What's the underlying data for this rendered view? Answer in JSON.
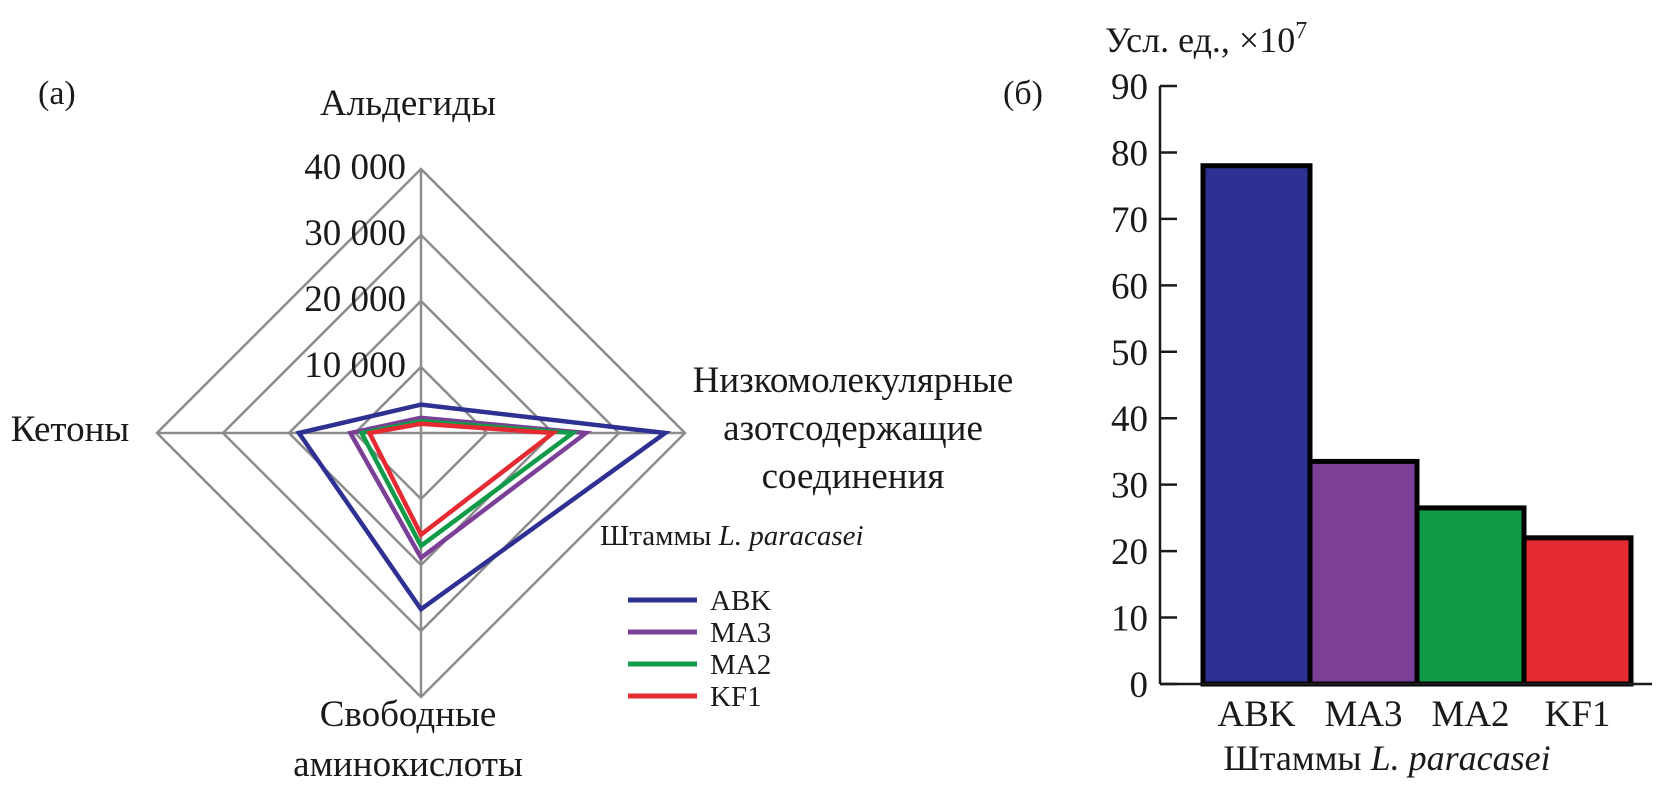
{
  "chart_data": [
    {
      "type": "radar",
      "panel_label": "(а)",
      "axes": [
        "Альдегиды",
        "Низкомолекулярные азотсодержащие соединения",
        "Свободные аминокислоты",
        "Кетоны"
      ],
      "axis_label_lines": [
        [
          "Альдегиды"
        ],
        [
          "Низкомолекулярные",
          "азотсодержащие",
          "соединения"
        ],
        [
          "Свободные",
          "аминокислоты"
        ],
        [
          "Кетоны"
        ]
      ],
      "scale_ticks": [
        10000,
        20000,
        30000,
        40000
      ],
      "scale_tick_labels": [
        "10 000",
        "20 000",
        "30 000",
        "40 000"
      ],
      "rlim": [
        0,
        40000
      ],
      "legend_title_prefix": "Штаммы ",
      "legend_title_italic": "L. paracasei",
      "series": [
        {
          "name": "ABK",
          "color": "#2e3192",
          "values": [
            4300,
            37000,
            26700,
            18500
          ]
        },
        {
          "name": "MA3",
          "color": "#7b3f98",
          "values": [
            2300,
            25000,
            18900,
            10700
          ]
        },
        {
          "name": "MA2",
          "color": "#119b48",
          "values": [
            1800,
            23000,
            17100,
            9000
          ]
        },
        {
          "name": "KF1",
          "color": "#e52a31",
          "values": [
            1400,
            20000,
            15400,
            7800
          ]
        }
      ]
    },
    {
      "type": "bar",
      "panel_label": "(б)",
      "ylabel": "Усл. ед., ×10",
      "ylabel_superscript": "7",
      "xlabel_prefix": "Штаммы ",
      "xlabel_italic": "L. paracasei",
      "categories": [
        "ABK",
        "MA3",
        "MA2",
        "KF1"
      ],
      "values": [
        78,
        33.5,
        26.5,
        22
      ],
      "colors": [
        "#2e3192",
        "#7b3f98",
        "#119b48",
        "#e52a31"
      ],
      "ylim": [
        0,
        90
      ],
      "yticks": [
        0,
        10,
        20,
        30,
        40,
        50,
        60,
        70,
        80,
        90
      ]
    }
  ]
}
